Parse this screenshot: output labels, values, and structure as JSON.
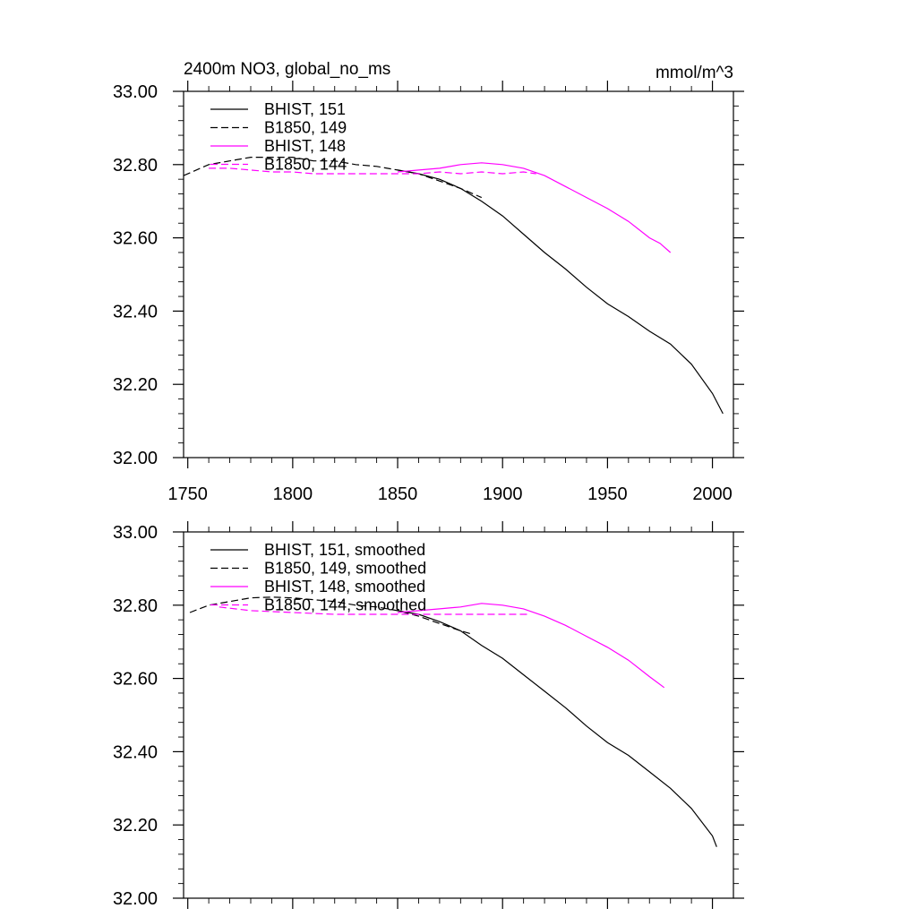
{
  "chart_data": [
    {
      "type": "line",
      "title": "2400m NO3, global_no_ms",
      "units": "mmol/m^3",
      "xlim": [
        1748,
        2010
      ],
      "ylim": [
        32.0,
        33.0
      ],
      "xticks": [
        1750,
        1800,
        1850,
        1900,
        1950,
        2000
      ],
      "yticks": [
        "32.00",
        "32.20",
        "32.40",
        "32.60",
        "32.80",
        "33.00"
      ],
      "x_tick_labels_shown": true,
      "grid": false,
      "legend_position": "top-left",
      "series": [
        {
          "name": "BHIST, 151",
          "color": "#000000",
          "dash": "solid",
          "x": [
            1850,
            1860,
            1870,
            1880,
            1890,
            1900,
            1910,
            1920,
            1930,
            1940,
            1950,
            1960,
            1970,
            1980,
            1990,
            2000,
            2005
          ],
          "y": [
            32.785,
            32.775,
            32.76,
            32.735,
            32.7,
            32.66,
            32.61,
            32.56,
            32.515,
            32.465,
            32.42,
            32.385,
            32.345,
            32.31,
            32.255,
            32.175,
            32.12
          ]
        },
        {
          "name": "B1850, 149",
          "color": "#000000",
          "dash": "dashed",
          "x": [
            1748,
            1760,
            1770,
            1780,
            1790,
            1800,
            1810,
            1820,
            1830,
            1840,
            1850,
            1860,
            1870,
            1880,
            1890
          ],
          "y": [
            32.77,
            32.8,
            32.81,
            32.82,
            32.82,
            32.82,
            32.81,
            32.81,
            32.8,
            32.795,
            32.785,
            32.775,
            32.755,
            32.735,
            32.71
          ]
        },
        {
          "name": "BHIST, 148",
          "color": "#ff00ff",
          "dash": "solid",
          "x": [
            1850,
            1860,
            1870,
            1880,
            1890,
            1900,
            1910,
            1920,
            1930,
            1940,
            1950,
            1960,
            1970,
            1975,
            1980
          ],
          "y": [
            32.78,
            32.785,
            32.79,
            32.8,
            32.805,
            32.8,
            32.79,
            32.77,
            32.74,
            32.71,
            32.68,
            32.645,
            32.6,
            32.585,
            32.56
          ]
        },
        {
          "name": "B1850, 144",
          "color": "#ff00ff",
          "dash": "dashed",
          "x": [
            1760,
            1770,
            1780,
            1790,
            1800,
            1810,
            1820,
            1830,
            1840,
            1850,
            1860,
            1870,
            1880,
            1890,
            1900,
            1910,
            1916
          ],
          "y": [
            32.79,
            32.79,
            32.785,
            32.78,
            32.78,
            32.775,
            32.775,
            32.775,
            32.775,
            32.775,
            32.775,
            32.78,
            32.775,
            32.78,
            32.775,
            32.78,
            32.775
          ]
        }
      ]
    },
    {
      "type": "line",
      "title": "",
      "units": "",
      "xlim": [
        1748,
        2010
      ],
      "ylim": [
        32.0,
        33.0
      ],
      "xticks": [
        1750,
        1800,
        1850,
        1900,
        1950,
        2000
      ],
      "yticks": [
        "32.00",
        "32.20",
        "32.40",
        "32.60",
        "32.80",
        "33.00"
      ],
      "x_tick_labels_shown": false,
      "grid": false,
      "legend_position": "top-left",
      "series": [
        {
          "name": "BHIST, 151, smoothed",
          "color": "#000000",
          "dash": "solid",
          "x": [
            1850,
            1860,
            1870,
            1880,
            1890,
            1900,
            1910,
            1920,
            1930,
            1940,
            1950,
            1960,
            1970,
            1980,
            1990,
            2000,
            2002
          ],
          "y": [
            32.785,
            32.775,
            32.755,
            32.73,
            32.69,
            32.655,
            32.61,
            32.565,
            32.52,
            32.47,
            32.425,
            32.39,
            32.345,
            32.3,
            32.245,
            32.17,
            32.14
          ]
        },
        {
          "name": "B1850, 149, smoothed",
          "color": "#000000",
          "dash": "dashed",
          "x": [
            1751,
            1760,
            1770,
            1780,
            1790,
            1800,
            1810,
            1820,
            1830,
            1840,
            1850,
            1860,
            1870,
            1880,
            1886
          ],
          "y": [
            32.78,
            32.8,
            32.81,
            32.82,
            32.822,
            32.82,
            32.815,
            32.81,
            32.8,
            32.795,
            32.785,
            32.77,
            32.75,
            32.73,
            32.72
          ]
        },
        {
          "name": "BHIST, 148, smoothed",
          "color": "#ff00ff",
          "dash": "solid",
          "x": [
            1850,
            1860,
            1870,
            1880,
            1890,
            1900,
            1910,
            1920,
            1930,
            1940,
            1950,
            1960,
            1970,
            1977
          ],
          "y": [
            32.78,
            32.785,
            32.79,
            32.795,
            32.805,
            32.8,
            32.79,
            32.77,
            32.745,
            32.715,
            32.685,
            32.65,
            32.605,
            32.575
          ]
        },
        {
          "name": "B1850, 144, smoothed",
          "color": "#ff00ff",
          "dash": "dashed",
          "x": [
            1765,
            1780,
            1800,
            1820,
            1840,
            1860,
            1880,
            1900,
            1913
          ],
          "y": [
            32.795,
            32.785,
            32.78,
            32.775,
            32.775,
            32.775,
            32.775,
            32.775,
            32.775
          ]
        }
      ]
    }
  ]
}
